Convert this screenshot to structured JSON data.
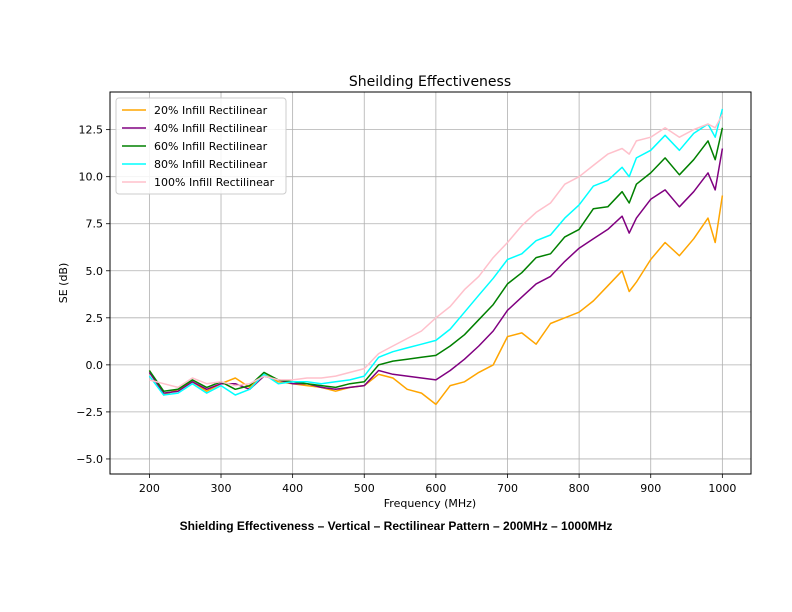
{
  "chart_data": {
    "type": "line",
    "title": "Sheilding Effectiveness",
    "xlabel": "Frequency (MHz)",
    "ylabel": "SE (dB)",
    "xlim": [
      145,
      1040
    ],
    "ylim": [
      -5.8,
      14.5
    ],
    "xticks": [
      200,
      300,
      400,
      500,
      600,
      700,
      800,
      900,
      1000
    ],
    "yticks": [
      -5.0,
      -2.5,
      0.0,
      2.5,
      5.0,
      7.5,
      10.0,
      12.5
    ],
    "ytick_labels": [
      "−5.0",
      "−2.5",
      "0.0",
      "2.5",
      "5.0",
      "7.5",
      "10.0",
      "12.5"
    ],
    "grid": true,
    "legend_position": "top-left",
    "series": [
      {
        "name": "20% Infill Rectilinear",
        "color": "#FFA500",
        "x": [
          200,
          220,
          240,
          260,
          280,
          300,
          320,
          340,
          360,
          380,
          400,
          420,
          440,
          460,
          480,
          500,
          520,
          540,
          560,
          580,
          600,
          620,
          640,
          660,
          680,
          700,
          720,
          740,
          760,
          780,
          800,
          820,
          840,
          860,
          870,
          880,
          900,
          920,
          940,
          960,
          980,
          990,
          1000
        ],
        "y": [
          -0.3,
          -1.6,
          -1.3,
          -0.9,
          -1.4,
          -1.0,
          -0.7,
          -1.2,
          -0.5,
          -0.9,
          -1.0,
          -1.1,
          -1.2,
          -1.4,
          -1.2,
          -1.1,
          -0.5,
          -0.7,
          -1.3,
          -1.5,
          -2.1,
          -1.1,
          -0.9,
          -0.4,
          0.0,
          1.5,
          1.7,
          1.1,
          2.2,
          2.5,
          2.8,
          3.4,
          4.2,
          5.0,
          3.9,
          4.4,
          5.6,
          6.5,
          5.8,
          6.7,
          7.8,
          6.5,
          9.0
        ]
      },
      {
        "name": "40% Infill Rectilinear",
        "color": "#800080",
        "x": [
          200,
          220,
          240,
          260,
          280,
          300,
          320,
          340,
          360,
          380,
          400,
          420,
          440,
          460,
          480,
          500,
          520,
          540,
          560,
          580,
          600,
          620,
          640,
          660,
          680,
          700,
          720,
          740,
          760,
          780,
          800,
          820,
          840,
          860,
          870,
          880,
          900,
          920,
          940,
          960,
          980,
          990,
          1000
        ],
        "y": [
          -0.4,
          -1.5,
          -1.4,
          -0.9,
          -1.3,
          -1.0,
          -1.0,
          -1.3,
          -0.6,
          -0.8,
          -1.0,
          -1.0,
          -1.2,
          -1.3,
          -1.2,
          -1.1,
          -0.3,
          -0.5,
          -0.6,
          -0.7,
          -0.8,
          -0.3,
          0.3,
          1.0,
          1.8,
          2.9,
          3.6,
          4.3,
          4.7,
          5.5,
          6.2,
          6.7,
          7.2,
          7.9,
          7.0,
          7.8,
          8.8,
          9.3,
          8.4,
          9.2,
          10.2,
          9.3,
          11.5
        ]
      },
      {
        "name": "60% Infill Rectilinear",
        "color": "#008000",
        "x": [
          200,
          220,
          240,
          260,
          280,
          300,
          320,
          340,
          360,
          380,
          400,
          420,
          440,
          460,
          480,
          500,
          520,
          540,
          560,
          580,
          600,
          620,
          640,
          660,
          680,
          700,
          720,
          740,
          760,
          780,
          800,
          820,
          840,
          860,
          870,
          880,
          900,
          920,
          940,
          960,
          980,
          990,
          1000
        ],
        "y": [
          -0.3,
          -1.4,
          -1.3,
          -0.8,
          -1.2,
          -0.9,
          -1.3,
          -1.1,
          -0.4,
          -0.8,
          -0.9,
          -1.0,
          -1.1,
          -1.2,
          -1.0,
          -0.9,
          0.0,
          0.2,
          0.3,
          0.4,
          0.5,
          1.0,
          1.6,
          2.4,
          3.2,
          4.3,
          4.9,
          5.7,
          5.9,
          6.8,
          7.2,
          8.3,
          8.4,
          9.2,
          8.6,
          9.6,
          10.2,
          11.0,
          10.1,
          10.9,
          11.9,
          10.9,
          12.6
        ]
      },
      {
        "name": "80% Infill Rectilinear",
        "color": "#00FFFF",
        "x": [
          200,
          220,
          240,
          260,
          280,
          300,
          320,
          340,
          360,
          380,
          400,
          420,
          440,
          460,
          480,
          500,
          520,
          540,
          560,
          580,
          600,
          620,
          640,
          660,
          680,
          700,
          720,
          740,
          760,
          780,
          800,
          820,
          840,
          860,
          870,
          880,
          900,
          920,
          940,
          960,
          980,
          990,
          1000
        ],
        "y": [
          -0.6,
          -1.6,
          -1.5,
          -1.0,
          -1.5,
          -1.1,
          -1.6,
          -1.3,
          -0.5,
          -1.0,
          -0.9,
          -0.9,
          -1.0,
          -0.9,
          -0.8,
          -0.6,
          0.4,
          0.7,
          0.9,
          1.1,
          1.3,
          1.9,
          2.8,
          3.7,
          4.6,
          5.6,
          5.9,
          6.6,
          6.9,
          7.8,
          8.5,
          9.5,
          9.8,
          10.5,
          10.0,
          11.0,
          11.4,
          12.2,
          11.4,
          12.3,
          12.8,
          12.1,
          13.6
        ]
      },
      {
        "name": "100% Infill Rectilinear",
        "color": "#FFC0CB",
        "x": [
          200,
          220,
          240,
          260,
          280,
          300,
          320,
          340,
          360,
          380,
          400,
          420,
          440,
          460,
          480,
          500,
          520,
          540,
          560,
          580,
          600,
          620,
          640,
          660,
          680,
          700,
          720,
          740,
          760,
          780,
          800,
          820,
          840,
          860,
          870,
          880,
          900,
          920,
          940,
          960,
          980,
          990,
          1000
        ],
        "y": [
          -0.8,
          -1.0,
          -1.2,
          -0.7,
          -1.0,
          -0.9,
          -1.1,
          -1.0,
          -0.6,
          -0.8,
          -0.8,
          -0.7,
          -0.7,
          -0.6,
          -0.4,
          -0.2,
          0.6,
          1.0,
          1.4,
          1.8,
          2.5,
          3.1,
          4.0,
          4.7,
          5.7,
          6.5,
          7.4,
          8.1,
          8.6,
          9.6,
          10.0,
          10.6,
          11.2,
          11.5,
          11.2,
          11.9,
          12.1,
          12.6,
          12.1,
          12.5,
          12.8,
          12.6,
          13.3
        ]
      }
    ]
  },
  "caption": "Shielding Effectiveness – Vertical – Rectilinear Pattern – 200MHz – 1000MHz"
}
